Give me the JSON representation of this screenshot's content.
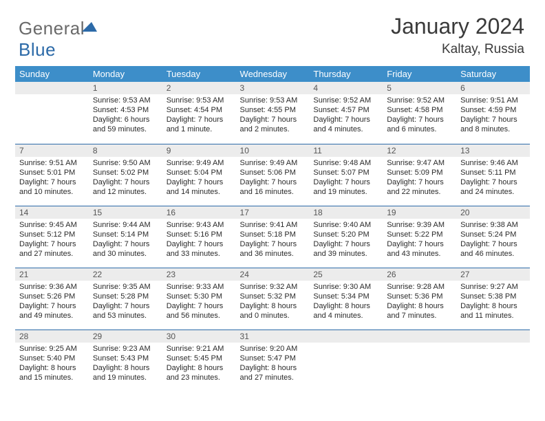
{
  "brand": {
    "part1": "General",
    "part2": "Blue"
  },
  "title": {
    "month": "January 2024",
    "location": "Kaltay, Russia"
  },
  "colors": {
    "header_bg": "#3d8ec9",
    "header_text": "#ffffff",
    "row_divider": "#2c6aa8",
    "daynum_bg": "#ececec",
    "logo_accent": "#2c6aa8",
    "body_text": "#2a2a2a"
  },
  "layout": {
    "cols": 7,
    "rows": 5,
    "col_width_pct": 14.28
  },
  "daysOfWeek": [
    "Sunday",
    "Monday",
    "Tuesday",
    "Wednesday",
    "Thursday",
    "Friday",
    "Saturday"
  ],
  "weeks": [
    [
      {
        "day": ""
      },
      {
        "day": "1",
        "sunrise": "9:53 AM",
        "sunset": "4:53 PM",
        "daylight": "6 hours and 59 minutes."
      },
      {
        "day": "2",
        "sunrise": "9:53 AM",
        "sunset": "4:54 PM",
        "daylight": "7 hours and 1 minute."
      },
      {
        "day": "3",
        "sunrise": "9:53 AM",
        "sunset": "4:55 PM",
        "daylight": "7 hours and 2 minutes."
      },
      {
        "day": "4",
        "sunrise": "9:52 AM",
        "sunset": "4:57 PM",
        "daylight": "7 hours and 4 minutes."
      },
      {
        "day": "5",
        "sunrise": "9:52 AM",
        "sunset": "4:58 PM",
        "daylight": "7 hours and 6 minutes."
      },
      {
        "day": "6",
        "sunrise": "9:51 AM",
        "sunset": "4:59 PM",
        "daylight": "7 hours and 8 minutes."
      }
    ],
    [
      {
        "day": "7",
        "sunrise": "9:51 AM",
        "sunset": "5:01 PM",
        "daylight": "7 hours and 10 minutes."
      },
      {
        "day": "8",
        "sunrise": "9:50 AM",
        "sunset": "5:02 PM",
        "daylight": "7 hours and 12 minutes."
      },
      {
        "day": "9",
        "sunrise": "9:49 AM",
        "sunset": "5:04 PM",
        "daylight": "7 hours and 14 minutes."
      },
      {
        "day": "10",
        "sunrise": "9:49 AM",
        "sunset": "5:06 PM",
        "daylight": "7 hours and 16 minutes."
      },
      {
        "day": "11",
        "sunrise": "9:48 AM",
        "sunset": "5:07 PM",
        "daylight": "7 hours and 19 minutes."
      },
      {
        "day": "12",
        "sunrise": "9:47 AM",
        "sunset": "5:09 PM",
        "daylight": "7 hours and 22 minutes."
      },
      {
        "day": "13",
        "sunrise": "9:46 AM",
        "sunset": "5:11 PM",
        "daylight": "7 hours and 24 minutes."
      }
    ],
    [
      {
        "day": "14",
        "sunrise": "9:45 AM",
        "sunset": "5:12 PM",
        "daylight": "7 hours and 27 minutes."
      },
      {
        "day": "15",
        "sunrise": "9:44 AM",
        "sunset": "5:14 PM",
        "daylight": "7 hours and 30 minutes."
      },
      {
        "day": "16",
        "sunrise": "9:43 AM",
        "sunset": "5:16 PM",
        "daylight": "7 hours and 33 minutes."
      },
      {
        "day": "17",
        "sunrise": "9:41 AM",
        "sunset": "5:18 PM",
        "daylight": "7 hours and 36 minutes."
      },
      {
        "day": "18",
        "sunrise": "9:40 AM",
        "sunset": "5:20 PM",
        "daylight": "7 hours and 39 minutes."
      },
      {
        "day": "19",
        "sunrise": "9:39 AM",
        "sunset": "5:22 PM",
        "daylight": "7 hours and 43 minutes."
      },
      {
        "day": "20",
        "sunrise": "9:38 AM",
        "sunset": "5:24 PM",
        "daylight": "7 hours and 46 minutes."
      }
    ],
    [
      {
        "day": "21",
        "sunrise": "9:36 AM",
        "sunset": "5:26 PM",
        "daylight": "7 hours and 49 minutes."
      },
      {
        "day": "22",
        "sunrise": "9:35 AM",
        "sunset": "5:28 PM",
        "daylight": "7 hours and 53 minutes."
      },
      {
        "day": "23",
        "sunrise": "9:33 AM",
        "sunset": "5:30 PM",
        "daylight": "7 hours and 56 minutes."
      },
      {
        "day": "24",
        "sunrise": "9:32 AM",
        "sunset": "5:32 PM",
        "daylight": "8 hours and 0 minutes."
      },
      {
        "day": "25",
        "sunrise": "9:30 AM",
        "sunset": "5:34 PM",
        "daylight": "8 hours and 4 minutes."
      },
      {
        "day": "26",
        "sunrise": "9:28 AM",
        "sunset": "5:36 PM",
        "daylight": "8 hours and 7 minutes."
      },
      {
        "day": "27",
        "sunrise": "9:27 AM",
        "sunset": "5:38 PM",
        "daylight": "8 hours and 11 minutes."
      }
    ],
    [
      {
        "day": "28",
        "sunrise": "9:25 AM",
        "sunset": "5:40 PM",
        "daylight": "8 hours and 15 minutes."
      },
      {
        "day": "29",
        "sunrise": "9:23 AM",
        "sunset": "5:43 PM",
        "daylight": "8 hours and 19 minutes."
      },
      {
        "day": "30",
        "sunrise": "9:21 AM",
        "sunset": "5:45 PM",
        "daylight": "8 hours and 23 minutes."
      },
      {
        "day": "31",
        "sunrise": "9:20 AM",
        "sunset": "5:47 PM",
        "daylight": "8 hours and 27 minutes."
      },
      {
        "day": ""
      },
      {
        "day": ""
      },
      {
        "day": ""
      }
    ]
  ],
  "labels": {
    "sunrise": "Sunrise:",
    "sunset": "Sunset:",
    "daylight": "Daylight:"
  }
}
